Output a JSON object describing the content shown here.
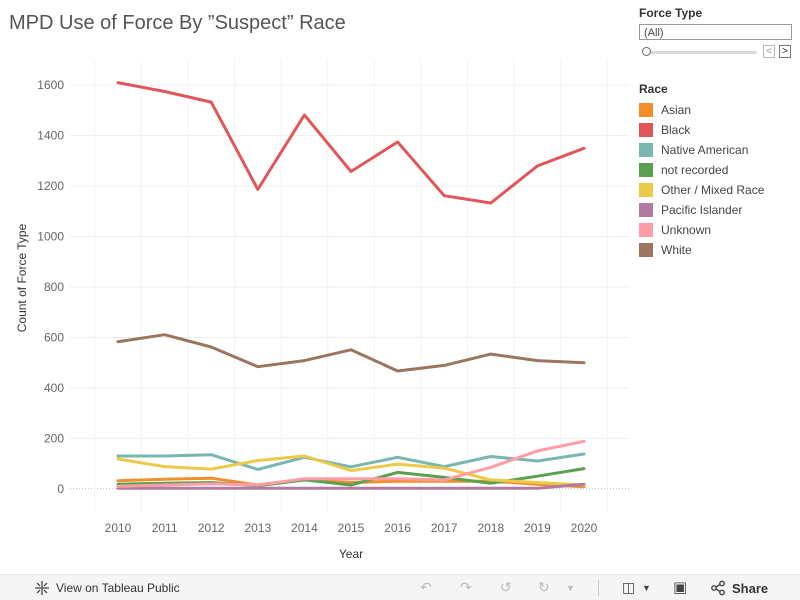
{
  "title": "MPD Use of Force By ”Suspect” Race",
  "filter": {
    "title": "Force Type",
    "selected": "(All)",
    "prev_symbol": "<",
    "next_symbol": ">"
  },
  "legend": {
    "title": "Race"
  },
  "footer": {
    "view_label": "View on Tableau Public",
    "share_label": "Share"
  },
  "chart_data": {
    "type": "line",
    "xlabel": "Year",
    "ylabel": "Count of Force Type",
    "x": [
      2010,
      2011,
      2012,
      2013,
      2014,
      2015,
      2016,
      2017,
      2018,
      2019,
      2020
    ],
    "ylim": [
      -100,
      1700
    ],
    "yticks": [
      0,
      200,
      400,
      600,
      800,
      1000,
      1200,
      1400,
      1600
    ],
    "grid": true,
    "legend_position": "right",
    "series": [
      {
        "name": "Asian",
        "color": "#F28E2B",
        "values": [
          32,
          38,
          42,
          15,
          35,
          25,
          30,
          30,
          30,
          18,
          8
        ]
      },
      {
        "name": "Black",
        "color": "#E15759",
        "values": [
          1610,
          1575,
          1533,
          1187,
          1482,
          1258,
          1375,
          1162,
          1133,
          1280,
          1350
        ]
      },
      {
        "name": "Native American",
        "color": "#76B7B2",
        "values": [
          130,
          130,
          135,
          77,
          125,
          87,
          125,
          88,
          128,
          110,
          138
        ]
      },
      {
        "name": "not recorded",
        "color": "#59A14F",
        "values": [
          18,
          22,
          25,
          12,
          35,
          15,
          65,
          45,
          22,
          50,
          80
        ]
      },
      {
        "name": "Other / Mixed Race",
        "color": "#EDC948",
        "values": [
          118,
          88,
          78,
          112,
          130,
          72,
          98,
          82,
          35,
          25,
          15
        ]
      },
      {
        "name": "Pacific Islander",
        "color": "#B07AA1",
        "values": [
          2,
          2,
          2,
          2,
          2,
          2,
          2,
          2,
          2,
          2,
          18
        ]
      },
      {
        "name": "Unknown",
        "color": "#FF9DA7",
        "values": [
          10,
          15,
          20,
          15,
          40,
          40,
          40,
          35,
          85,
          150,
          188
        ]
      },
      {
        "name": "White",
        "color": "#9C755F",
        "values": [
          583,
          611,
          562,
          484,
          508,
          551,
          467,
          489,
          534,
          508,
          500
        ]
      }
    ]
  }
}
